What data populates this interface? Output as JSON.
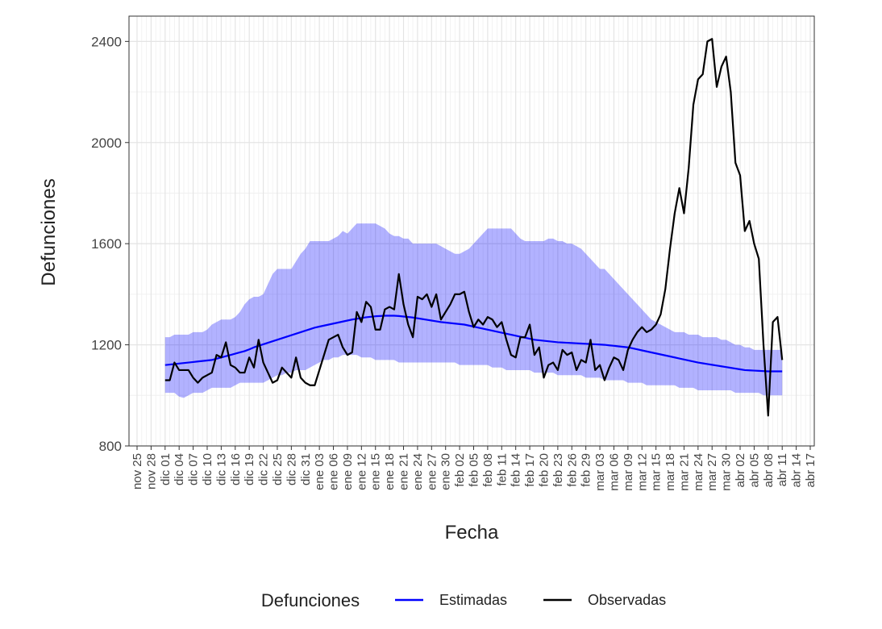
{
  "chart_data": {
    "type": "line",
    "x_label": "Fecha",
    "y_label": "Defunciones",
    "legend_title": "Defunciones",
    "ylim": [
      800,
      2500
    ],
    "yticks": [
      800,
      1200,
      1600,
      2000,
      2400
    ],
    "grid": true,
    "legend_position": "bottom",
    "categories": [
      "nov 25",
      null,
      null,
      "nov 28",
      null,
      null,
      "dic 01",
      null,
      null,
      "dic 04",
      null,
      null,
      "dic 07",
      null,
      null,
      "dic 10",
      null,
      null,
      "dic 13",
      null,
      null,
      "dic 16",
      null,
      null,
      "dic 19",
      null,
      null,
      "dic 22",
      null,
      null,
      "dic 25",
      null,
      null,
      "dic 28",
      null,
      null,
      "dic 31",
      null,
      null,
      "ene 03",
      null,
      null,
      "ene 06",
      null,
      null,
      "ene 09",
      null,
      null,
      "ene 12",
      null,
      null,
      "ene 15",
      null,
      null,
      "ene 18",
      null,
      null,
      "ene 21",
      null,
      null,
      "ene 24",
      null,
      null,
      "ene 27",
      null,
      null,
      "ene 30",
      null,
      null,
      "feb 02",
      null,
      null,
      "feb 05",
      null,
      null,
      "feb 08",
      null,
      null,
      "feb 11",
      null,
      null,
      "feb 14",
      null,
      null,
      "feb 17",
      null,
      null,
      "feb 20",
      null,
      null,
      "feb 23",
      null,
      null,
      "feb 26",
      null,
      null,
      "feb 29",
      null,
      null,
      "mar 03",
      null,
      null,
      "mar 06",
      null,
      null,
      "mar 09",
      null,
      null,
      "mar 12",
      null,
      null,
      "mar 15",
      null,
      null,
      "mar 18",
      null,
      null,
      "mar 21",
      null,
      null,
      "mar 24",
      null,
      null,
      "mar 27",
      null,
      null,
      "mar 30",
      null,
      null,
      "abr 02",
      null,
      null,
      "abr 05",
      null,
      null,
      "abr 08",
      null,
      null,
      "abr 11",
      null,
      null,
      "abr 14",
      null,
      null,
      "abr 17"
    ],
    "series": [
      {
        "name": "Estimadas",
        "color": "#0000ff",
        "band_color": "#0000ff",
        "values": [
          null,
          null,
          null,
          null,
          null,
          null,
          1120,
          1122,
          1124,
          1126,
          1128,
          1130,
          1132,
          1134,
          1136,
          1138,
          1140,
          1145,
          1150,
          1155,
          1160,
          1165,
          1170,
          1175,
          1182,
          1190,
          1196,
          1202,
          1208,
          1214,
          1220,
          1226,
          1232,
          1238,
          1244,
          1250,
          1256,
          1262,
          1268,
          1272,
          1276,
          1280,
          1284,
          1288,
          1292,
          1296,
          1300,
          1303,
          1306,
          1309,
          1311,
          1313,
          1314,
          1315,
          1315,
          1315,
          1314,
          1312,
          1310,
          1308,
          1305,
          1302,
          1299,
          1296,
          1293,
          1290,
          1288,
          1286,
          1284,
          1282,
          1280,
          1276,
          1272,
          1268,
          1264,
          1260,
          1256,
          1252,
          1248,
          1244,
          1240,
          1236,
          1232,
          1228,
          1224,
          1220,
          1218,
          1216,
          1214,
          1212,
          1210,
          1209,
          1208,
          1207,
          1206,
          1205,
          1204,
          1203,
          1202,
          1201,
          1200,
          1198,
          1196,
          1194,
          1192,
          1190,
          1186,
          1182,
          1178,
          1174,
          1170,
          1166,
          1162,
          1158,
          1154,
          1150,
          1146,
          1142,
          1138,
          1134,
          1130,
          1127,
          1124,
          1121,
          1118,
          1115,
          1112,
          1109,
          1106,
          1103,
          1100,
          1099,
          1098,
          1097,
          1096,
          1095,
          1095,
          1095,
          1095,
          null,
          null,
          null,
          null,
          null,
          null
        ],
        "lower": [
          null,
          null,
          null,
          null,
          null,
          null,
          1010,
          1010,
          1010,
          995,
          990,
          1000,
          1010,
          1010,
          1010,
          1020,
          1030,
          1030,
          1030,
          1030,
          1030,
          1040,
          1050,
          1050,
          1050,
          1050,
          1050,
          1050,
          1060,
          1070,
          1080,
          1080,
          1090,
          1090,
          1100,
          1100,
          1100,
          1110,
          1120,
          1130,
          1140,
          1140,
          1150,
          1150,
          1160,
          1160,
          1160,
          1160,
          1150,
          1150,
          1150,
          1140,
          1140,
          1140,
          1140,
          1140,
          1130,
          1130,
          1130,
          1130,
          1130,
          1130,
          1130,
          1130,
          1130,
          1130,
          1130,
          1130,
          1130,
          1120,
          1120,
          1120,
          1120,
          1120,
          1120,
          1120,
          1110,
          1110,
          1110,
          1100,
          1100,
          1100,
          1100,
          1100,
          1100,
          1090,
          1090,
          1090,
          1090,
          1090,
          1080,
          1080,
          1080,
          1080,
          1080,
          1080,
          1070,
          1070,
          1070,
          1070,
          1060,
          1060,
          1060,
          1060,
          1060,
          1050,
          1050,
          1050,
          1050,
          1040,
          1040,
          1040,
          1040,
          1040,
          1040,
          1040,
          1030,
          1030,
          1030,
          1030,
          1020,
          1020,
          1020,
          1020,
          1020,
          1020,
          1020,
          1020,
          1010,
          1010,
          1010,
          1010,
          1010,
          1010,
          1000,
          1000,
          1000,
          1000,
          1000,
          null,
          null,
          null,
          null,
          null,
          null
        ],
        "upper": [
          null,
          null,
          null,
          null,
          null,
          null,
          1230,
          1230,
          1240,
          1240,
          1240,
          1240,
          1250,
          1250,
          1250,
          1260,
          1280,
          1290,
          1300,
          1300,
          1300,
          1310,
          1330,
          1360,
          1380,
          1390,
          1390,
          1400,
          1440,
          1480,
          1500,
          1500,
          1500,
          1500,
          1530,
          1560,
          1580,
          1610,
          1610,
          1610,
          1610,
          1610,
          1620,
          1630,
          1650,
          1640,
          1660,
          1680,
          1680,
          1680,
          1680,
          1680,
          1670,
          1660,
          1640,
          1630,
          1630,
          1620,
          1620,
          1600,
          1600,
          1600,
          1600,
          1600,
          1600,
          1590,
          1580,
          1570,
          1560,
          1560,
          1570,
          1580,
          1600,
          1620,
          1640,
          1660,
          1660,
          1660,
          1660,
          1660,
          1660,
          1640,
          1620,
          1610,
          1610,
          1610,
          1610,
          1610,
          1620,
          1620,
          1610,
          1610,
          1600,
          1600,
          1590,
          1580,
          1560,
          1540,
          1520,
          1500,
          1500,
          1480,
          1460,
          1440,
          1420,
          1400,
          1380,
          1360,
          1340,
          1320,
          1300,
          1290,
          1280,
          1270,
          1260,
          1250,
          1250,
          1250,
          1240,
          1240,
          1240,
          1230,
          1230,
          1230,
          1230,
          1220,
          1220,
          1210,
          1200,
          1200,
          1190,
          1190,
          1180,
          1180,
          1180,
          1180,
          1180,
          1180,
          1180,
          null,
          null,
          null,
          null,
          null,
          null
        ]
      },
      {
        "name": "Observadas",
        "color": "#000000",
        "values": [
          null,
          null,
          null,
          null,
          null,
          null,
          1060,
          1060,
          1130,
          1100,
          1100,
          1100,
          1070,
          1050,
          1070,
          1080,
          1090,
          1160,
          1150,
          1210,
          1120,
          1110,
          1090,
          1090,
          1150,
          1110,
          1220,
          1130,
          1090,
          1050,
          1060,
          1110,
          1090,
          1070,
          1150,
          1070,
          1050,
          1040,
          1040,
          1100,
          1160,
          1220,
          1230,
          1240,
          1190,
          1160,
          1170,
          1330,
          1290,
          1370,
          1350,
          1260,
          1260,
          1340,
          1350,
          1340,
          1480,
          1360,
          1280,
          1230,
          1390,
          1380,
          1400,
          1350,
          1400,
          1300,
          1330,
          1360,
          1400,
          1400,
          1410,
          1330,
          1270,
          1300,
          1280,
          1310,
          1300,
          1270,
          1290,
          1220,
          1160,
          1150,
          1230,
          1230,
          1280,
          1160,
          1190,
          1070,
          1120,
          1130,
          1100,
          1180,
          1160,
          1170,
          1100,
          1140,
          1130,
          1220,
          1100,
          1120,
          1060,
          1110,
          1150,
          1140,
          1100,
          1180,
          1220,
          1250,
          1270,
          1250,
          1260,
          1280,
          1320,
          1420,
          1580,
          1720,
          1820,
          1720,
          1900,
          2150,
          2250,
          2270,
          2400,
          2410,
          2220,
          2300,
          2340,
          2200,
          1920,
          1870,
          1650,
          1690,
          1600,
          1540,
          1200,
          920,
          1290,
          1310,
          1140,
          null,
          null,
          null,
          null,
          null,
          null
        ]
      }
    ]
  }
}
